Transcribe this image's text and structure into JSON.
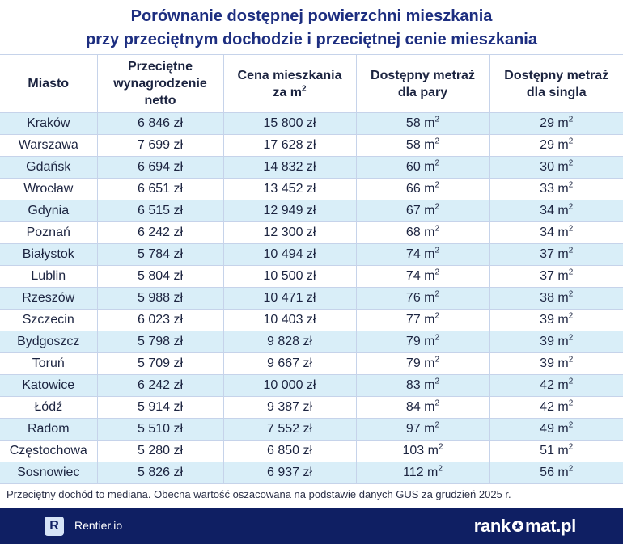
{
  "title": {
    "line1": "Porównanie dostępnej powierzchni mieszkania",
    "line2": "przy przeciętnym dochodzie i przeciętnej cenie mieszkania"
  },
  "table": {
    "headers": {
      "city": "Miasto",
      "salary": [
        "Przeciętne",
        "wynagrodzenie",
        "netto"
      ],
      "price": [
        "Cena mieszkania",
        "za m"
      ],
      "couple": [
        "Dostępny metraż",
        "dla pary"
      ],
      "single": [
        "Dostępny metraż",
        "dla singla"
      ],
      "sq_sup": "2"
    },
    "rows": [
      {
        "city": "Kraków",
        "salary": "6 846 zł",
        "price": "15 800 zł",
        "couple": "58 m",
        "single": "29 m"
      },
      {
        "city": "Warszawa",
        "salary": "7 699 zł",
        "price": "17 628 zł",
        "couple": "58 m",
        "single": "29 m"
      },
      {
        "city": "Gdańsk",
        "salary": "6 694 zł",
        "price": "14 832 zł",
        "couple": "60 m",
        "single": "30 m"
      },
      {
        "city": "Wrocław",
        "salary": "6 651 zł",
        "price": "13 452 zł",
        "couple": "66 m",
        "single": "33 m"
      },
      {
        "city": "Gdynia",
        "salary": "6 515 zł",
        "price": "12 949 zł",
        "couple": "67 m",
        "single": "34 m"
      },
      {
        "city": "Poznań",
        "salary": "6 242 zł",
        "price": "12 300 zł",
        "couple": "68 m",
        "single": "34 m"
      },
      {
        "city": "Białystok",
        "salary": "5 784 zł",
        "price": "10 494 zł",
        "couple": "74 m",
        "single": "37 m"
      },
      {
        "city": "Lublin",
        "salary": "5 804 zł",
        "price": "10 500 zł",
        "couple": "74 m",
        "single": "37 m"
      },
      {
        "city": "Rzeszów",
        "salary": "5 988 zł",
        "price": "10 471 zł",
        "couple": "76 m",
        "single": "38 m"
      },
      {
        "city": "Szczecin",
        "salary": "6 023 zł",
        "price": "10 403 zł",
        "couple": "77 m",
        "single": "39 m"
      },
      {
        "city": "Bydgoszcz",
        "salary": "5 798 zł",
        "price": "9 828 zł",
        "couple": "79 m",
        "single": "39 m"
      },
      {
        "city": "Toruń",
        "salary": "5 709 zł",
        "price": "9 667 zł",
        "couple": "79 m",
        "single": "39 m"
      },
      {
        "city": "Katowice",
        "salary": "6 242 zł",
        "price": "10 000 zł",
        "couple": "83 m",
        "single": "42 m"
      },
      {
        "city": "Łódź",
        "salary": "5 914 zł",
        "price": "9 387 zł",
        "couple": "84 m",
        "single": "42 m"
      },
      {
        "city": "Radom",
        "salary": "5 510 zł",
        "price": "7 552 zł",
        "couple": "97 m",
        "single": "49 m"
      },
      {
        "city": "Częstochowa",
        "salary": "5 280 zł",
        "price": "6 850 zł",
        "couple": "103 m",
        "single": "51 m"
      },
      {
        "city": "Sosnowiec",
        "salary": "5 826 zł",
        "price": "6 937 zł",
        "couple": "112 m",
        "single": "56 m"
      }
    ]
  },
  "note": "Przeciętny dochód to mediana. Obecna wartość oszacowana na podstawie danych GUS za grudzień 2025 r.",
  "footer": {
    "rentier_letter": "R",
    "rentier_name": "Rentier.io",
    "rankomat_left": "rank",
    "rankomat_right": "mat.pl"
  },
  "colors": {
    "title": "#1d2e80",
    "row_tint": "#d9eef8",
    "footer_bg": "#0f1f63",
    "grid": "#c6d3ea"
  }
}
